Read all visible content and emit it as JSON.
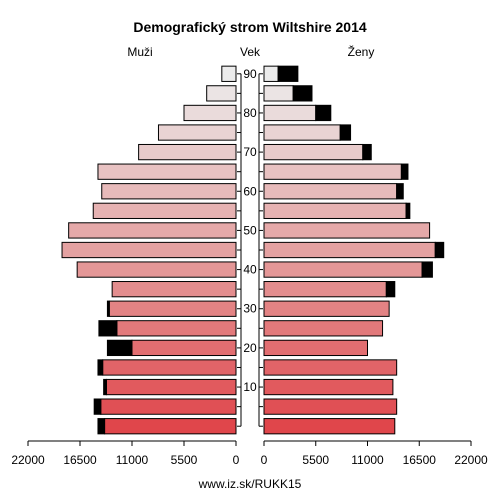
{
  "chart_data": {
    "type": "bar",
    "orientation": "horizontal",
    "title": "Demografický strom Wiltshire 2014",
    "left_label": "Muži",
    "center_label": "Vek",
    "right_label": "Ženy",
    "footer": "www.iz.sk/RUKK15",
    "age_groups": [
      "0-4",
      "5-9",
      "10-14",
      "15-19",
      "20-24",
      "25-29",
      "30-34",
      "35-39",
      "40-44",
      "45-49",
      "50-54",
      "55-59",
      "60-64",
      "65-69",
      "70-74",
      "75-79",
      "80-84",
      "85-89",
      "90+"
    ],
    "age_ticks": [
      {
        "label": "10",
        "age_group": 2
      },
      {
        "label": "20",
        "age_group": 4
      },
      {
        "label": "30",
        "age_group": 6
      },
      {
        "label": "40",
        "age_group": 8
      },
      {
        "label": "50",
        "age_group": 10
      },
      {
        "label": "60",
        "age_group": 12
      },
      {
        "label": "70",
        "age_group": 14
      },
      {
        "label": "80",
        "age_group": 16
      },
      {
        "label": "90",
        "age_group": 18
      }
    ],
    "x_ticks_left": [
      "22000",
      "16500",
      "11000",
      "5500",
      "0"
    ],
    "x_ticks_right": [
      "0",
      "5500",
      "11000",
      "16500",
      "22000"
    ],
    "xlim": [
      0,
      22000
    ],
    "series": [
      {
        "name": "Muži",
        "side": "left",
        "values": [
          13900,
          14300,
          13700,
          14100,
          11000,
          12600,
          13400,
          13100,
          16800,
          18400,
          17700,
          15100,
          14200,
          14600,
          10300,
          8200,
          5500,
          3100,
          1500
        ],
        "excess": [
          700,
          700,
          300,
          500,
          2600,
          1900,
          200,
          0,
          0,
          0,
          0,
          0,
          0,
          0,
          0,
          0,
          0,
          0,
          0
        ]
      },
      {
        "name": "Ženy",
        "side": "right",
        "values": [
          13900,
          14100,
          13700,
          14100,
          11000,
          12600,
          13300,
          13000,
          16800,
          18200,
          17600,
          15100,
          14100,
          14600,
          10500,
          8100,
          5500,
          3100,
          1500
        ],
        "excess": [
          0,
          0,
          0,
          0,
          0,
          0,
          0,
          900,
          1100,
          900,
          0,
          400,
          700,
          700,
          900,
          1100,
          1600,
          2000,
          2100
        ]
      }
    ],
    "colors": {
      "excess": "#000000",
      "young": "#e0464b",
      "mid": "#e4a1a1",
      "old": "#ececec"
    }
  }
}
